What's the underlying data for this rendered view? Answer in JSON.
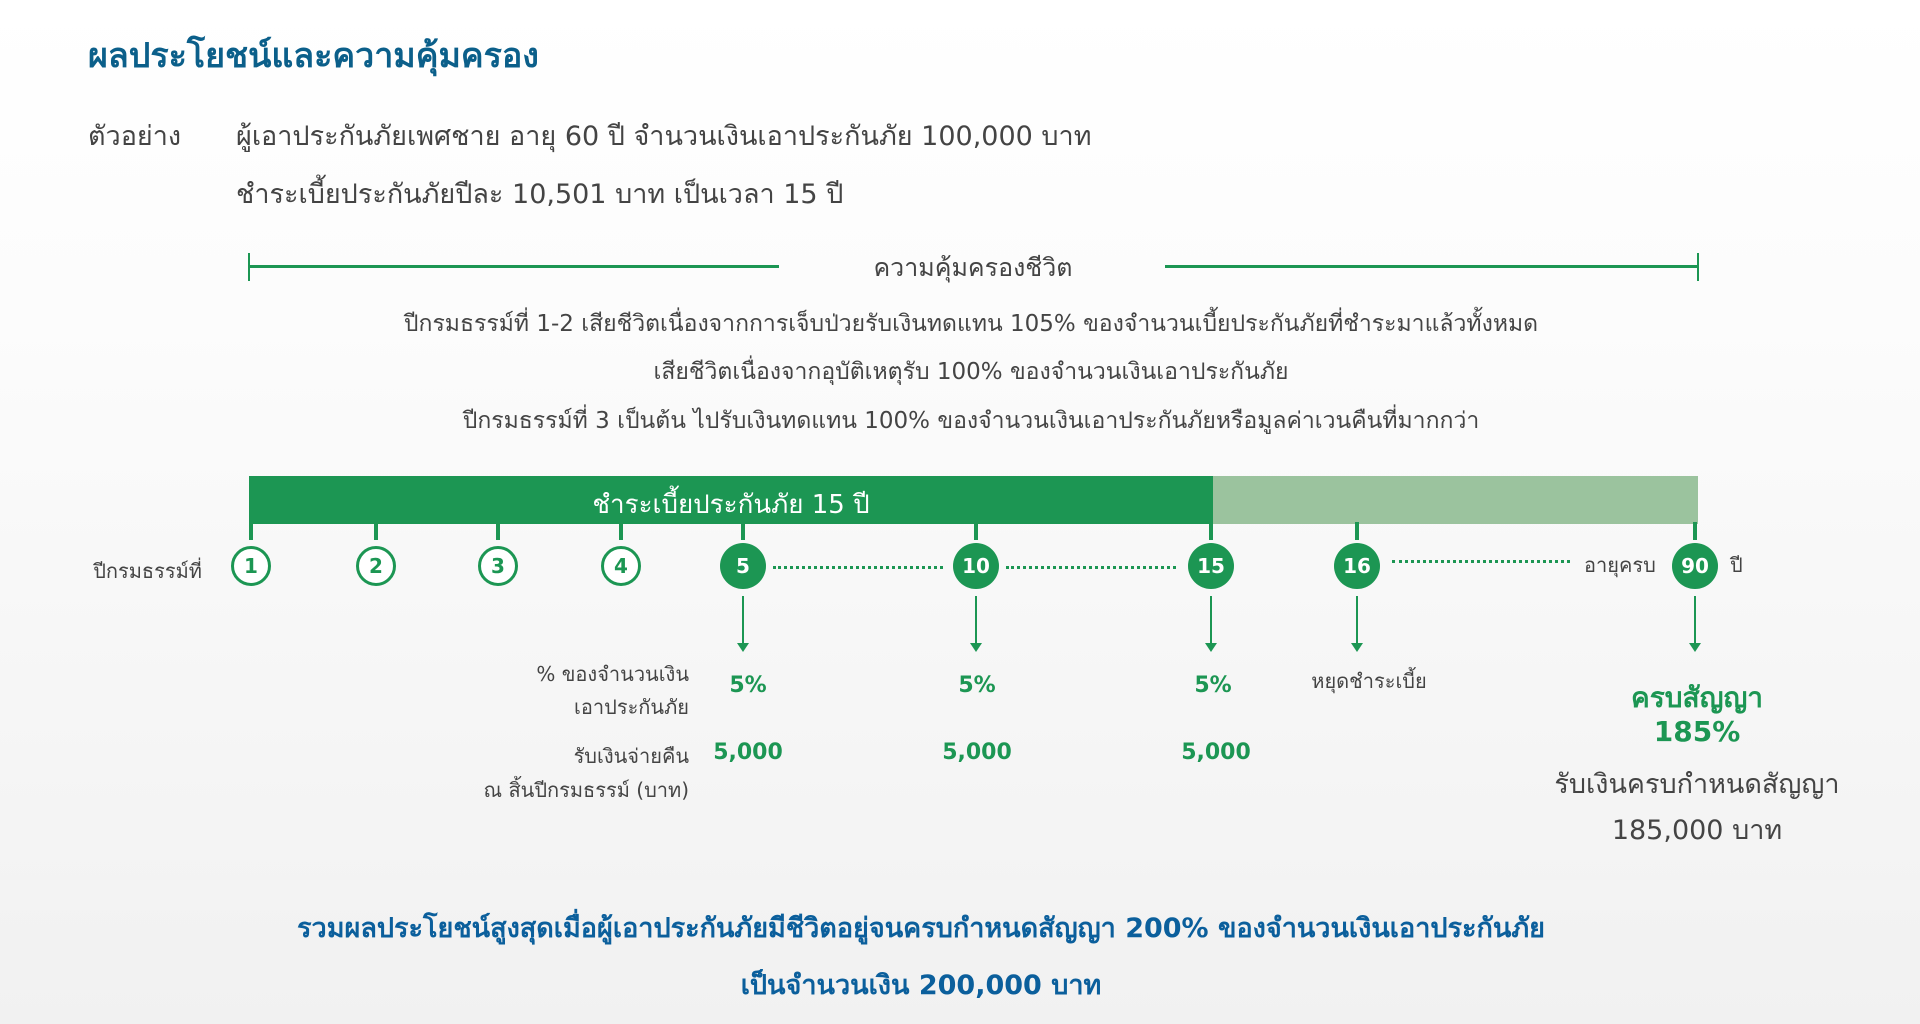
{
  "title": "ผลประโยชน์และความคุ้มครอง",
  "example": {
    "label": "ตัวอย่าง",
    "line1": "ผู้เอาประกันภัยเพศชาย อายุ 60 ปี จำนวนเงินเอาประกันภัย 100,000 บาท",
    "line2": "ชำระเบี้ยประกันภัยปีละ 10,501 บาท เป็นเวลา 15 ปี"
  },
  "coverage": {
    "label": "ความคุ้มครองชีวิต",
    "lines": [
      "ปีกรมธรรม์ที่ 1-2 เสียชีวิตเนื่องจากการเจ็บป่วยรับเงินทดแทน 105% ของจำนวนเบี้ยประกันภัยที่ชำระมาแล้วทั้งหมด",
      "เสียชีวิตเนื่องจากอุบัติเหตุรับ 100% ของจำนวนเงินเอาประกันภัย",
      "ปีกรมธรรม์ที่ 3 เป็นต้น ไปรับเงินทดแทน 100% ของจำนวนเงินเอาประกันภัยหรือมูลค่าเวนคืนที่มากกว่า"
    ]
  },
  "timeline": {
    "bar_label": "ชำระเบี้ยประกันภัย 15 ปี",
    "policy_year_label": "ปีกรมธรรม์ที่",
    "years": [
      "1",
      "2",
      "3",
      "4",
      "5",
      "10",
      "15",
      "16",
      "90"
    ],
    "age_label": "อายุครบ",
    "year_unit": "ปี",
    "stop_label": "หยุดชำระเบี้ย",
    "pct_label_1": "% ของจำนวนเงิน",
    "pct_label_2": "เอาประกันภัย",
    "cash_label_1": "รับเงินจ่ายคืน",
    "cash_label_2": "ณ สิ้นปีกรมธรรม์ (บาท)",
    "payouts": [
      {
        "year": "5",
        "pct": "5%",
        "amount": "5,000"
      },
      {
        "year": "10",
        "pct": "5%",
        "amount": "5,000"
      },
      {
        "year": "15",
        "pct": "5%",
        "amount": "5,000"
      }
    ],
    "maturity": {
      "title": "ครบสัญญา",
      "pct": "185%",
      "desc": "รับเงินครบกำหนดสัญญา",
      "amount": "185,000 บาท"
    }
  },
  "summary": {
    "line1": "รวมผลประโยชน์สูงสุดเมื่อผู้เอาประกันภัยมีชีวิตอยู่จนครบกำหนดสัญญา 200% ของจำนวนเงินเอาประกันภัย",
    "line2": "เป็นจำนวนเงิน 200,000  บาท"
  },
  "colors": {
    "green": "#1c9653",
    "light_green": "#9bc39e",
    "blue": "#0b5f8a"
  }
}
